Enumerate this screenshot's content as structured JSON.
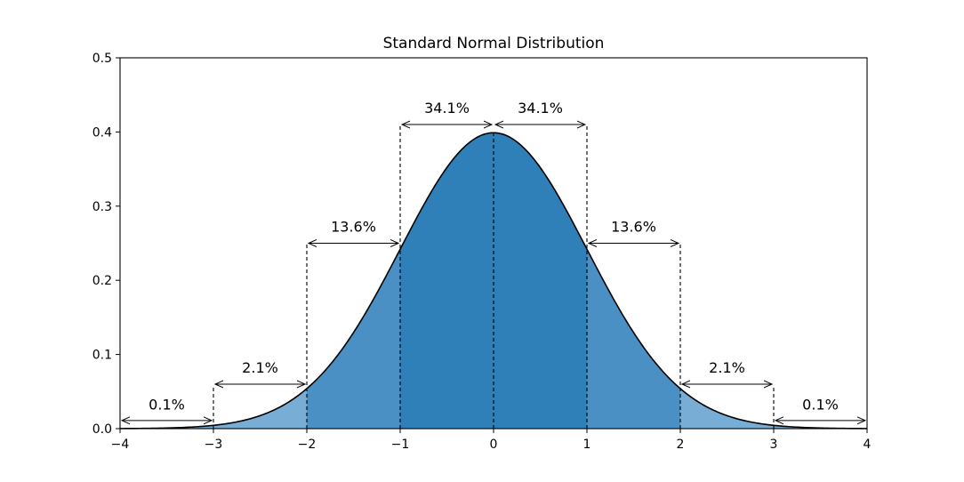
{
  "chart_data": {
    "type": "area",
    "title": "Standard Normal Distribution",
    "xlabel": "",
    "ylabel": "",
    "xlim": [
      -4,
      4
    ],
    "ylim": [
      0,
      0.5
    ],
    "x_ticks": [
      -4,
      -3,
      -2,
      -1,
      0,
      1,
      2,
      3,
      4
    ],
    "x_tick_labels": [
      "−4",
      "−3",
      "−2",
      "−1",
      "0",
      "1",
      "2",
      "3",
      "4"
    ],
    "y_ticks": [
      0.0,
      0.1,
      0.2,
      0.3,
      0.4,
      0.5
    ],
    "y_tick_labels": [
      "0.0",
      "0.1",
      "0.2",
      "0.3",
      "0.4",
      "0.5"
    ],
    "curve": {
      "function": "standard normal pdf",
      "mean": 0,
      "std": 1,
      "line_color": "#000000"
    },
    "regions": [
      {
        "from": -4,
        "to": -3,
        "color": "#78aed6"
      },
      {
        "from": -3,
        "to": -2,
        "color": "#78aed6"
      },
      {
        "from": -2,
        "to": -1,
        "color": "#4a90c4"
      },
      {
        "from": -1,
        "to": 0,
        "color": "#2f7fb8"
      },
      {
        "from": 0,
        "to": 1,
        "color": "#2f7fb8"
      },
      {
        "from": 1,
        "to": 2,
        "color": "#4a90c4"
      },
      {
        "from": 2,
        "to": 3,
        "color": "#78aed6"
      },
      {
        "from": 3,
        "to": 4,
        "color": "#78aed6"
      }
    ],
    "boundary_lines": [
      {
        "x": -3,
        "top": 0.058
      },
      {
        "x": -2,
        "top": 0.25
      },
      {
        "x": -1,
        "top": 0.41
      },
      {
        "x": 0,
        "top": 0.399
      },
      {
        "x": 1,
        "top": 0.41
      },
      {
        "x": 2,
        "top": 0.25
      },
      {
        "x": 3,
        "top": 0.058
      }
    ],
    "annotations": [
      {
        "label": "0.1%",
        "from": -4,
        "to": -3,
        "y": 0.011,
        "label_y": 0.033
      },
      {
        "label": "2.1%",
        "from": -3,
        "to": -2,
        "y": 0.06,
        "label_y": 0.083
      },
      {
        "label": "13.6%",
        "from": -2,
        "to": -1,
        "y": 0.25,
        "label_y": 0.273
      },
      {
        "label": "34.1%",
        "from": -1,
        "to": 0,
        "y": 0.41,
        "label_y": 0.433
      },
      {
        "label": "34.1%",
        "from": 0,
        "to": 1,
        "y": 0.41,
        "label_y": 0.433
      },
      {
        "label": "13.6%",
        "from": 1,
        "to": 2,
        "y": 0.25,
        "label_y": 0.273
      },
      {
        "label": "2.1%",
        "from": 2,
        "to": 3,
        "y": 0.06,
        "label_y": 0.083
      },
      {
        "label": "0.1%",
        "from": 3,
        "to": 4,
        "y": 0.011,
        "label_y": 0.033
      }
    ],
    "grid": false
  }
}
